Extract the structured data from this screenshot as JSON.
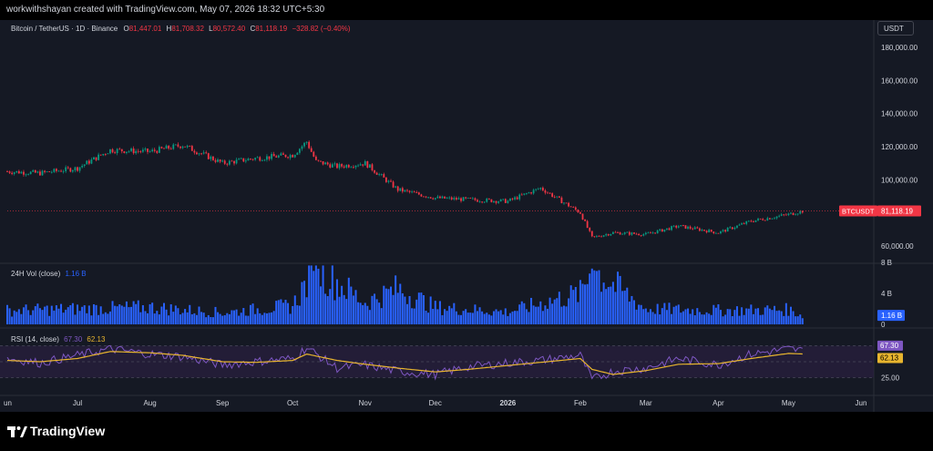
{
  "header": {
    "credit": "workwithshayan created with TradingView.com, May 07, 2026 18:32 UTC+5:30"
  },
  "legend": {
    "symbol": "Bitcoin / TetherUS · 1D · Binance",
    "o_label": "O",
    "o": "81,447.01",
    "h_label": "H",
    "h": "81,708.32",
    "l_label": "L",
    "l": "80,572.40",
    "c_label": "C",
    "c": "81,118.19",
    "change": "−328.82 (−0.40%)"
  },
  "currency_badge": "USDT",
  "price_axis": {
    "ticks": [
      "180,000.00",
      "160,000.00",
      "140,000.00",
      "120,000.00",
      "100,000.00",
      "60,000.00"
    ]
  },
  "price_tag": {
    "symbol": "BTCUSDT",
    "value": "81,118.19"
  },
  "volume": {
    "label": "24H Vol (close)",
    "value": "1.16 B",
    "ticks": [
      "8 B",
      "4 B",
      "0"
    ],
    "tag": "1.16 B"
  },
  "rsi": {
    "label": "RSI (14, close)",
    "rsi_value": "67.30",
    "ma_value": "62.13",
    "ticks": [
      "75.00",
      "25.00"
    ]
  },
  "time_axis": [
    "un",
    "Jul",
    "Aug",
    "Sep",
    "Oct",
    "Nov",
    "Dec",
    "2026",
    "Feb",
    "Mar",
    "Apr",
    "May",
    "Jun"
  ],
  "footer": {
    "brand": "TradingView"
  },
  "colors": {
    "up": "#089981",
    "down": "#f23645",
    "volume": "#2962ff",
    "rsi": "#7e57c2",
    "rsi_ma": "#e8b52e",
    "rsi_band": "#2a2040"
  },
  "chart_data": [
    {
      "type": "candlestick",
      "title": "Bitcoin / TetherUS · 1D · Binance",
      "ylim": [
        50000,
        190000
      ],
      "x": [
        "2025-06-01",
        "2025-06-15",
        "2025-07-01",
        "2025-07-15",
        "2025-08-01",
        "2025-08-15",
        "2025-09-01",
        "2025-09-15",
        "2025-10-01",
        "2025-10-07",
        "2025-10-11",
        "2025-10-20",
        "2025-11-01",
        "2025-11-15",
        "2025-12-01",
        "2025-12-15",
        "2026-01-01",
        "2026-01-15",
        "2026-02-01",
        "2026-02-06",
        "2026-02-15",
        "2026-03-01",
        "2026-03-15",
        "2026-04-01",
        "2026-04-15",
        "2026-05-01",
        "2026-05-07"
      ],
      "close": [
        105000,
        104000,
        107000,
        118000,
        117000,
        121000,
        110000,
        113000,
        115000,
        123000,
        111000,
        108000,
        110000,
        94000,
        89000,
        88000,
        87000,
        95000,
        80000,
        65000,
        68000,
        67000,
        72000,
        68000,
        75000,
        79000,
        81118
      ]
    },
    {
      "type": "bar",
      "name": "24H Vol (close)",
      "ylim": [
        0,
        8
      ],
      "x": [
        "2025-06-01",
        "2025-07-01",
        "2025-08-01",
        "2025-09-01",
        "2025-10-01",
        "2025-10-11",
        "2025-11-01",
        "2025-11-15",
        "2025-12-01",
        "2026-01-01",
        "2026-02-01",
        "2026-02-06",
        "2026-03-01",
        "2026-04-01",
        "2026-05-01",
        "2026-05-07"
      ],
      "values": [
        1.8,
        2.0,
        2.2,
        1.5,
        2.4,
        7.4,
        2.8,
        4.6,
        2.2,
        1.6,
        4.0,
        7.2,
        2.0,
        1.8,
        1.9,
        1.16
      ]
    },
    {
      "type": "line",
      "ylim": [
        0,
        100
      ],
      "x": [
        "2025-06-01",
        "2025-06-15",
        "2025-07-01",
        "2025-07-15",
        "2025-08-01",
        "2025-08-15",
        "2025-09-01",
        "2025-09-15",
        "2025-10-01",
        "2025-10-07",
        "2025-10-20",
        "2025-11-01",
        "2025-11-15",
        "2025-12-01",
        "2025-12-15",
        "2026-01-01",
        "2026-01-15",
        "2026-02-01",
        "2026-02-06",
        "2026-02-15",
        "2026-03-01",
        "2026-03-15",
        "2026-04-01",
        "2026-04-15",
        "2026-05-01",
        "2026-05-07"
      ],
      "series": [
        {
          "name": "RSI (14, close)",
          "values": [
            55,
            48,
            60,
            70,
            62,
            58,
            45,
            50,
            55,
            72,
            40,
            45,
            35,
            30,
            42,
            48,
            52,
            60,
            22,
            35,
            40,
            55,
            45,
            62,
            70,
            67.3
          ]
        },
        {
          "values": [
            52,
            50,
            55,
            66,
            64,
            60,
            50,
            49,
            52,
            62,
            52,
            46,
            40,
            34,
            38,
            44,
            49,
            55,
            38,
            30,
            36,
            46,
            47,
            55,
            63,
            62.13
          ]
        }
      ]
    }
  ]
}
